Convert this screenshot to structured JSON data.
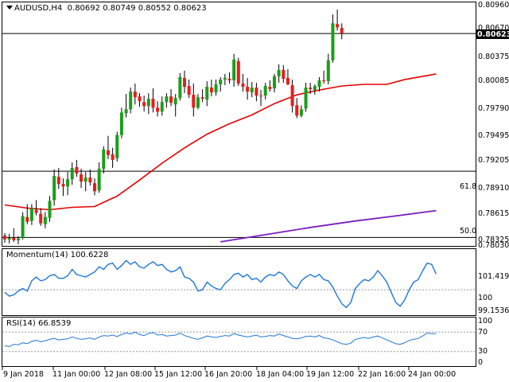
{
  "header": {
    "symbol": "AUDUSD,H4",
    "ohlc": "0.80692 0.80749 0.80552 0.80623"
  },
  "main_axis": {
    "ticks": [
      "0.80960",
      "0.80670",
      "0.80375",
      "0.80085",
      "0.79790",
      "0.79495",
      "0.79205",
      "0.78910",
      "0.78615",
      "0.78325",
      "0.78030"
    ],
    "current_price": "0.80623",
    "fib_618_label": "61.8",
    "fib_50_label": "50.0"
  },
  "momentum": {
    "label": "Momentum(14) 100.6228",
    "ticks": [
      "101.4196",
      "100",
      "99.1536"
    ]
  },
  "rsi": {
    "label": "RSI(14) 66.8539",
    "ticks": [
      "100",
      "70",
      "30",
      "0"
    ]
  },
  "x_axis": {
    "labels": [
      "9 Jan 2018",
      "11 Jan 00:00",
      "12 Jan 08:00",
      "15 Jan 12:00",
      "16 Jan 20:00",
      "18 Jan 04:00",
      "19 Jan 12:00",
      "22 Jan 16:00",
      "24 Jan 00:00"
    ]
  },
  "colors": {
    "bull": "#1a9e1a",
    "bear": "#e81c1c",
    "sma_fast": "#e60000",
    "sma_slow": "#7b1fbf",
    "indicator_line": "#1f77d6",
    "current_price_bg": "#000000"
  },
  "chart_data": {
    "type": "candlestick",
    "timeframe": "H4",
    "ylim": [
      0.7797,
      0.8101
    ],
    "horizontal_levels": {
      "fib_618": 0.7891,
      "fib_50": 0.78085,
      "current": 0.80623
    },
    "candles": [
      [
        0.7811,
        0.7814,
        0.7802,
        0.7806
      ],
      [
        0.7806,
        0.7813,
        0.7801,
        0.7808
      ],
      [
        0.7808,
        0.782,
        0.7803,
        0.7805
      ],
      [
        0.7805,
        0.781,
        0.78,
        0.7807
      ],
      [
        0.7808,
        0.784,
        0.7806,
        0.7835
      ],
      [
        0.7834,
        0.785,
        0.7825,
        0.7828
      ],
      [
        0.7829,
        0.785,
        0.7824,
        0.7845
      ],
      [
        0.7843,
        0.7855,
        0.7836,
        0.7839
      ],
      [
        0.7838,
        0.7845,
        0.7823,
        0.7826
      ],
      [
        0.7825,
        0.784,
        0.782,
        0.7834
      ],
      [
        0.7833,
        0.786,
        0.7828,
        0.7854
      ],
      [
        0.7855,
        0.7893,
        0.7848,
        0.7885
      ],
      [
        0.7884,
        0.7895,
        0.7869,
        0.7875
      ],
      [
        0.7875,
        0.7882,
        0.786,
        0.7872
      ],
      [
        0.7872,
        0.789,
        0.7861,
        0.7881
      ],
      [
        0.7881,
        0.7902,
        0.7874,
        0.7895
      ],
      [
        0.7896,
        0.7905,
        0.7884,
        0.7888
      ],
      [
        0.7887,
        0.7894,
        0.787,
        0.7878
      ],
      [
        0.7878,
        0.789,
        0.7866,
        0.7883
      ],
      [
        0.7883,
        0.7893,
        0.7873,
        0.7877
      ],
      [
        0.7876,
        0.7882,
        0.7861,
        0.7866
      ],
      [
        0.7867,
        0.7902,
        0.7864,
        0.7894
      ],
      [
        0.7894,
        0.7922,
        0.7888,
        0.7918
      ],
      [
        0.7917,
        0.7935,
        0.7906,
        0.7911
      ],
      [
        0.7912,
        0.792,
        0.7895,
        0.7905
      ],
      [
        0.7907,
        0.794,
        0.7903,
        0.7936
      ],
      [
        0.7936,
        0.797,
        0.7932,
        0.7964
      ],
      [
        0.7963,
        0.7987,
        0.7958,
        0.7968
      ],
      [
        0.7968,
        0.7995,
        0.7963,
        0.799
      ],
      [
        0.799,
        0.8,
        0.7974,
        0.7983
      ],
      [
        0.7984,
        0.7988,
        0.7971,
        0.7978
      ],
      [
        0.7977,
        0.7985,
        0.7965,
        0.7972
      ],
      [
        0.7972,
        0.7988,
        0.7962,
        0.7981
      ],
      [
        0.7981,
        0.7994,
        0.7964,
        0.797
      ],
      [
        0.797,
        0.7978,
        0.7959,
        0.7965
      ],
      [
        0.7965,
        0.7984,
        0.796,
        0.7977
      ],
      [
        0.7977,
        0.7988,
        0.797,
        0.7984
      ],
      [
        0.7984,
        0.7993,
        0.7972,
        0.7976
      ],
      [
        0.7974,
        0.7987,
        0.7959,
        0.7982
      ],
      [
        0.7982,
        0.8013,
        0.7979,
        0.8008
      ],
      [
        0.8007,
        0.8016,
        0.7988,
        0.7996
      ],
      [
        0.7997,
        0.8005,
        0.7982,
        0.7986
      ],
      [
        0.7986,
        0.8,
        0.7959,
        0.797
      ],
      [
        0.797,
        0.7987,
        0.7968,
        0.7983
      ],
      [
        0.7983,
        0.7993,
        0.7977,
        0.7981
      ],
      [
        0.798,
        0.8003,
        0.7972,
        0.7996
      ],
      [
        0.7995,
        0.8005,
        0.7984,
        0.7989
      ],
      [
        0.7989,
        0.8005,
        0.7985,
        0.7999
      ],
      [
        0.7999,
        0.8008,
        0.799,
        0.8005
      ],
      [
        0.8005,
        0.8012,
        0.7998,
        0.8007
      ],
      [
        0.8006,
        0.8014,
        0.8,
        0.8004
      ],
      [
        0.8004,
        0.8037,
        0.7996,
        0.803
      ],
      [
        0.8028,
        0.8032,
        0.7997,
        0.8
      ],
      [
        0.8,
        0.8012,
        0.799,
        0.7996
      ],
      [
        0.7996,
        0.8007,
        0.798,
        0.799
      ],
      [
        0.7989,
        0.8002,
        0.7983,
        0.7995
      ],
      [
        0.7995,
        0.8001,
        0.7978,
        0.7985
      ],
      [
        0.7985,
        0.7992,
        0.7972,
        0.7984
      ],
      [
        0.7985,
        0.8001,
        0.798,
        0.7997
      ],
      [
        0.7996,
        0.8004,
        0.799,
        0.7993
      ],
      [
        0.7994,
        0.8012,
        0.7989,
        0.8009
      ],
      [
        0.8009,
        0.8024,
        0.8001,
        0.8017
      ],
      [
        0.8017,
        0.8023,
        0.8001,
        0.8006
      ],
      [
        0.8007,
        0.8018,
        0.7998,
        0.7999
      ],
      [
        0.7998,
        0.8005,
        0.7964,
        0.7972
      ],
      [
        0.7973,
        0.7982,
        0.7957,
        0.796
      ],
      [
        0.796,
        0.7973,
        0.7958,
        0.7968
      ],
      [
        0.7969,
        0.8001,
        0.7965,
        0.7995
      ],
      [
        0.7995,
        0.8001,
        0.7987,
        0.7993
      ],
      [
        0.7992,
        0.7999,
        0.7986,
        0.7997
      ],
      [
        0.7996,
        0.8008,
        0.799,
        0.8004
      ],
      [
        0.8004,
        0.8016,
        0.8,
        0.8003
      ],
      [
        0.8003,
        0.8037,
        0.7999,
        0.8029
      ],
      [
        0.8029,
        0.8086,
        0.8026,
        0.8075
      ],
      [
        0.8074,
        0.8092,
        0.8066,
        0.807
      ],
      [
        0.80692,
        0.80749,
        0.80552,
        0.80623
      ]
    ],
    "sma_fast": [
      [
        0,
        0.7849
      ],
      [
        5,
        0.7845
      ],
      [
        10,
        0.7843
      ],
      [
        15,
        0.7846
      ],
      [
        20,
        0.7847
      ],
      [
        25,
        0.786
      ],
      [
        30,
        0.788
      ],
      [
        35,
        0.7901
      ],
      [
        40,
        0.792
      ],
      [
        45,
        0.7937
      ],
      [
        50,
        0.795
      ],
      [
        55,
        0.7961
      ],
      [
        60,
        0.7975
      ],
      [
        65,
        0.7986
      ],
      [
        70,
        0.7992
      ],
      [
        75,
        0.7997
      ],
      [
        80,
        0.7999
      ],
      [
        85,
        0.7999
      ],
      [
        89,
        0.8005
      ],
      [
        93,
        0.8009
      ],
      [
        96,
        0.8012
      ]
    ],
    "sma_slow": [
      [
        48,
        0.7803
      ],
      [
        58,
        0.7812
      ],
      [
        68,
        0.7821
      ],
      [
        78,
        0.7829
      ],
      [
        88,
        0.7836
      ],
      [
        96,
        0.7842
      ]
    ],
    "momentum": {
      "ylim": [
        99.0,
        101.6
      ],
      "values": [
        99.9,
        99.75,
        99.8,
        99.95,
        100.05,
        99.95,
        100.35,
        100.5,
        100.35,
        100.4,
        100.55,
        100.6,
        100.45,
        100.45,
        100.55,
        100.8,
        100.6,
        100.55,
        100.5,
        100.6,
        100.7,
        100.9,
        100.8,
        101.0,
        101.05,
        100.8,
        100.95,
        101.15,
        101.0,
        101.1,
        100.9,
        100.85,
        101.0,
        101.1,
        100.95,
        101.0,
        100.8,
        100.7,
        100.75,
        100.9,
        100.5,
        100.45,
        100.3,
        99.95,
        100.0,
        100.3,
        100.15,
        100.05,
        100.0,
        100.25,
        100.4,
        100.6,
        100.65,
        100.5,
        100.6,
        100.4,
        100.45,
        100.3,
        100.5,
        100.6,
        100.55,
        100.7,
        100.6,
        100.35,
        100.15,
        100.05,
        100.35,
        100.5,
        100.6,
        100.5,
        100.6,
        100.4,
        100.35,
        100.1,
        99.75,
        99.45,
        99.3,
        99.5,
        100.05,
        100.25,
        100.4,
        100.35,
        100.5,
        100.75,
        100.55,
        100.3,
        99.9,
        99.5,
        99.35,
        99.6,
        100.0,
        100.3,
        100.4,
        100.75,
        101.05,
        101.0,
        100.62
      ]
    },
    "rsi": {
      "ylim": [
        0,
        100
      ],
      "values": [
        42,
        40,
        45,
        44,
        48,
        46,
        51,
        53,
        50,
        52,
        55,
        57,
        54,
        55,
        56,
        60,
        57,
        55,
        56,
        58,
        55,
        60,
        63,
        62,
        64,
        61,
        65,
        68,
        66,
        70,
        65,
        63,
        67,
        69,
        64,
        65,
        62,
        63,
        64,
        68,
        63,
        60,
        57,
        55,
        58,
        62,
        60,
        59,
        61,
        63,
        62,
        67,
        64,
        62,
        60,
        62,
        64,
        60,
        61,
        63,
        62,
        66,
        63,
        60,
        57,
        56,
        58,
        61,
        62,
        60,
        63,
        58,
        57,
        54,
        50,
        46,
        45,
        47,
        55,
        57,
        59,
        57,
        60,
        62,
        58,
        54,
        50,
        46,
        45,
        48,
        53,
        55,
        57,
        62,
        68,
        67,
        66.85
      ]
    }
  }
}
